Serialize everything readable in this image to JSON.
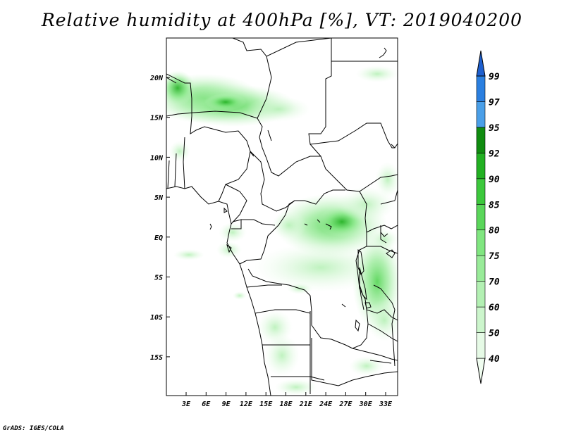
{
  "title": "Relative humidity at 400hPa [%], VT: 2019040200",
  "footer": "GrADS: IGES/COLA",
  "chart_data": {
    "type": "heatmap",
    "title": "Relative humidity at 400hPa [%], VT: 2019040200",
    "lon_ticks": [
      "3E",
      "6E",
      "9E",
      "12E",
      "15E",
      "18E",
      "21E",
      "24E",
      "27E",
      "30E",
      "33E"
    ],
    "lat_ticks": [
      "20N",
      "15N",
      "10N",
      "5N",
      "EQ",
      "5S",
      "10S",
      "15S"
    ],
    "xlim": [
      0,
      35
    ],
    "ylim": [
      -20,
      25
    ],
    "colorbar": {
      "levels": [
        "40",
        "50",
        "60",
        "70",
        "75",
        "80",
        "85",
        "90",
        "92",
        "95",
        "97",
        "99"
      ],
      "colors": [
        "#f0fdf0",
        "#e6fae6",
        "#ccf5cc",
        "#b3f0b3",
        "#99eb99",
        "#80e680",
        "#5ad65a",
        "#3cc83c",
        "#22b022",
        "#108c10",
        "#4a9fe8",
        "#2a7fe0",
        "#1d5fcf"
      ]
    }
  }
}
